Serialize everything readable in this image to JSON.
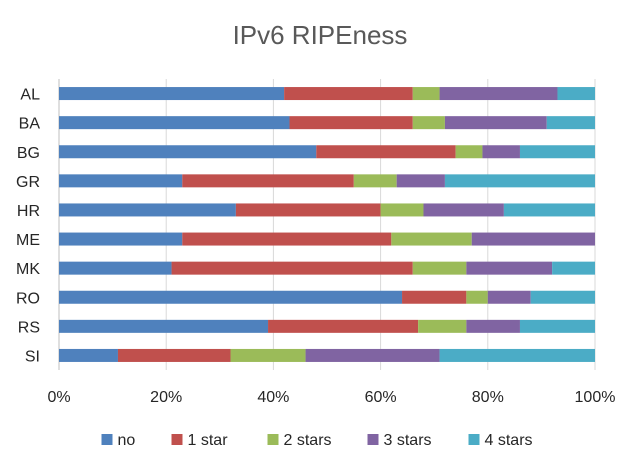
{
  "chart_data": {
    "type": "bar",
    "orientation": "horizontal",
    "stacked": "percent",
    "title": "IPv6 RIPEness",
    "categories": [
      "AL",
      "BA",
      "BG",
      "GR",
      "HR",
      "ME",
      "MK",
      "RO",
      "RS",
      "SI"
    ],
    "series": [
      {
        "name": "no",
        "color": "#4f81bd",
        "values": [
          42,
          43,
          48,
          23,
          33,
          23,
          21,
          64,
          39,
          11
        ]
      },
      {
        "name": "1 star",
        "color": "#c0504d",
        "values": [
          24,
          23,
          26,
          32,
          27,
          39,
          45,
          12,
          28,
          21
        ]
      },
      {
        "name": "2 stars",
        "color": "#9bbb59",
        "values": [
          5,
          6,
          5,
          8,
          8,
          15,
          10,
          4,
          9,
          14
        ]
      },
      {
        "name": "3 stars",
        "color": "#8064a2",
        "values": [
          22,
          19,
          7,
          9,
          15,
          23,
          16,
          8,
          10,
          25
        ]
      },
      {
        "name": "4 stars",
        "color": "#4bacc6",
        "values": [
          7,
          9,
          14,
          28,
          17,
          0,
          8,
          12,
          14,
          29
        ]
      }
    ],
    "xlim": [
      0,
      100
    ],
    "xticks": [
      "0%",
      "20%",
      "40%",
      "60%",
      "80%",
      "100%"
    ],
    "grid": "vertical",
    "legend_position": "bottom"
  }
}
